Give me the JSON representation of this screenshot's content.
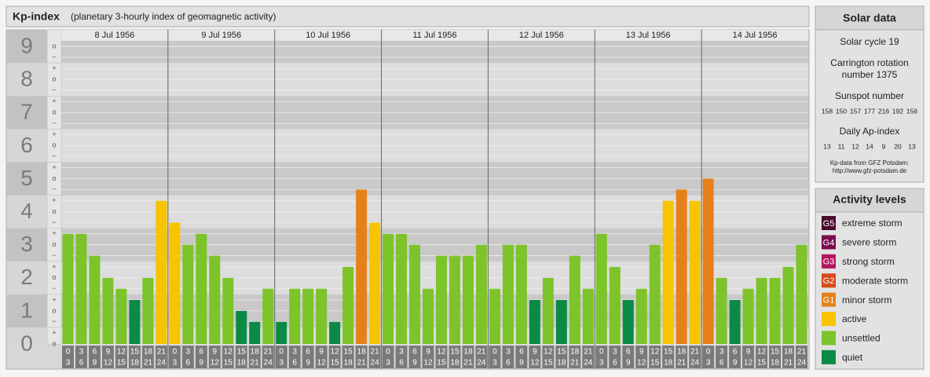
{
  "chart_data": {
    "type": "bar",
    "title": "Kp-index",
    "subtitle": "(planetary 3-hourly index of geomagnetic activity)",
    "ylim": [
      0,
      9.5
    ],
    "yticks": [
      0,
      1,
      2,
      3,
      4,
      5,
      6,
      7,
      8,
      9
    ],
    "minor_ticks": [
      {
        "offset": -0.33,
        "label": "−"
      },
      {
        "offset": 0,
        "label": "o"
      },
      {
        "offset": 0.33,
        "label": "+"
      }
    ],
    "hours_start": [
      0,
      3,
      6,
      9,
      12,
      15,
      18,
      21
    ],
    "hours_end": [
      3,
      6,
      9,
      12,
      15,
      18,
      21,
      24
    ],
    "days": [
      {
        "date": "8 Jul 1956",
        "values": [
          3.33,
          3.33,
          2.67,
          2,
          1.67,
          1.33,
          2,
          4.33
        ],
        "colors": [
          "#7dc32a",
          "#7dc32a",
          "#7dc32a",
          "#7dc32a",
          "#7dc32a",
          "#0b8a45",
          "#7dc32a",
          "#f8c300"
        ]
      },
      {
        "date": "9 Jul 1956",
        "values": [
          3.67,
          3,
          3.33,
          2.67,
          2,
          1,
          0.67,
          1.67
        ],
        "colors": [
          "#f8c300",
          "#7dc32a",
          "#7dc32a",
          "#7dc32a",
          "#7dc32a",
          "#0b8a45",
          "#0b8a45",
          "#7dc32a"
        ]
      },
      {
        "date": "10 Jul 1956",
        "values": [
          0.67,
          1.67,
          1.67,
          1.67,
          0.67,
          2.33,
          4.67,
          3.67
        ],
        "colors": [
          "#0b8a45",
          "#7dc32a",
          "#7dc32a",
          "#7dc32a",
          "#0b8a45",
          "#7dc32a",
          "#e8801a",
          "#f8c300"
        ]
      },
      {
        "date": "11 Jul 1956",
        "values": [
          3.33,
          3.33,
          3,
          1.67,
          2.67,
          2.67,
          2.67,
          3
        ],
        "colors": [
          "#7dc32a",
          "#7dc32a",
          "#7dc32a",
          "#7dc32a",
          "#7dc32a",
          "#7dc32a",
          "#7dc32a",
          "#7dc32a"
        ]
      },
      {
        "date": "12 Jul 1956",
        "values": [
          1.67,
          3,
          3,
          1.33,
          2,
          1.33,
          2.67,
          1.67
        ],
        "colors": [
          "#7dc32a",
          "#7dc32a",
          "#7dc32a",
          "#0b8a45",
          "#7dc32a",
          "#0b8a45",
          "#7dc32a",
          "#7dc32a"
        ]
      },
      {
        "date": "13 Jul 1956",
        "values": [
          3.33,
          2.33,
          1.33,
          1.67,
          3,
          4.33,
          4.67,
          4.33
        ],
        "colors": [
          "#7dc32a",
          "#7dc32a",
          "#0b8a45",
          "#7dc32a",
          "#7dc32a",
          "#f8c300",
          "#e8801a",
          "#f8c300"
        ]
      },
      {
        "date": "14 Jul 1956",
        "values": [
          5,
          2,
          1.33,
          1.67,
          2,
          2,
          2.33,
          3
        ],
        "colors": [
          "#e8801a",
          "#7dc32a",
          "#0b8a45",
          "#7dc32a",
          "#7dc32a",
          "#7dc32a",
          "#7dc32a",
          "#7dc32a"
        ]
      }
    ]
  },
  "solar_data": {
    "title": "Solar data",
    "cycle": "Solar cycle 19",
    "carrington": [
      "Carrington rotation",
      "number 1375"
    ],
    "sunspot_title": "Sunspot number",
    "sunspots": [
      158,
      150,
      157,
      177,
      216,
      192,
      156
    ],
    "ap_title": "Daily Ap-index",
    "ap": [
      13,
      11,
      12,
      14,
      9,
      20,
      13
    ],
    "source": [
      "Kp-data from GFZ Potsdam:",
      "http://www.gfz-potsdam.de"
    ]
  },
  "activity_levels": {
    "title": "Activity levels",
    "items": [
      {
        "code": "G5",
        "label": "extreme storm",
        "color": "#4a0a2c"
      },
      {
        "code": "G4",
        "label": "severe storm",
        "color": "#7a0c4c"
      },
      {
        "code": "G3",
        "label": "strong storm",
        "color": "#b3155f"
      },
      {
        "code": "G2",
        "label": "moderate storm",
        "color": "#d94a1c"
      },
      {
        "code": "G1",
        "label": "minor storm",
        "color": "#e8801a"
      },
      {
        "code": null,
        "label": "active",
        "color": "#f8c300"
      },
      {
        "code": null,
        "label": "unsettled",
        "color": "#7dc32a"
      },
      {
        "code": null,
        "label": "quiet",
        "color": "#0b8a45"
      }
    ]
  }
}
